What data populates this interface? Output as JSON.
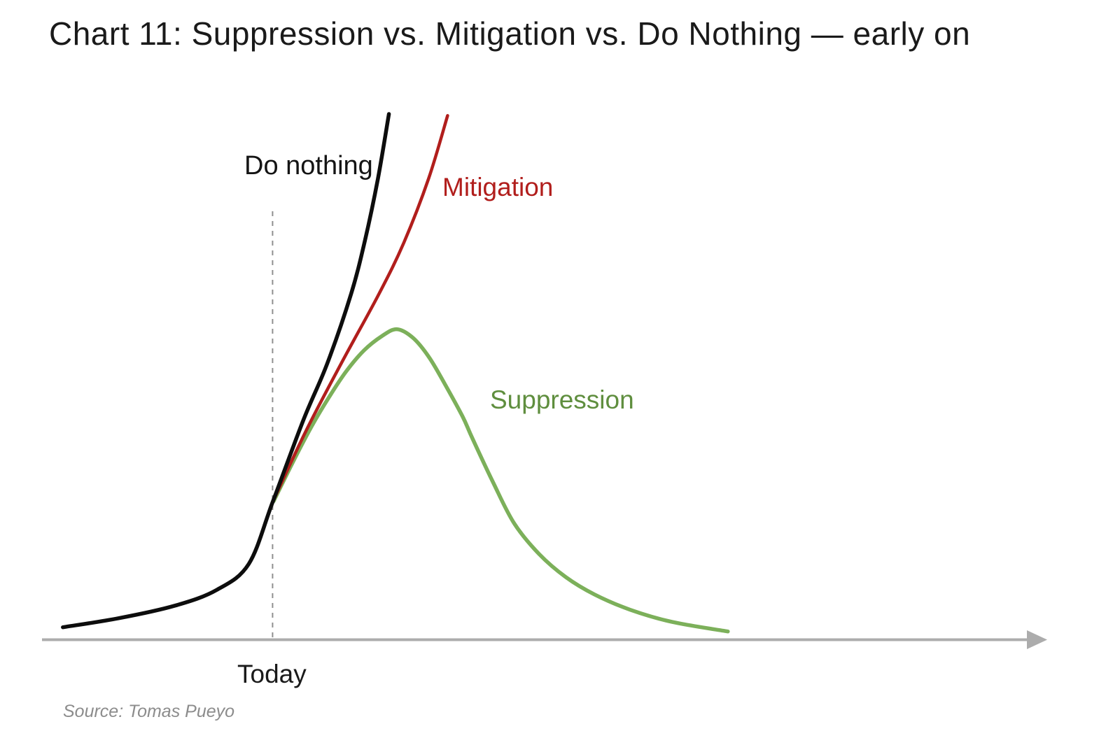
{
  "title": "Chart 11: Suppression vs. Mitigation vs. Do Nothing — early on",
  "source": "Source: Tomas Pueyo",
  "chart_data": {
    "type": "line",
    "title": "Chart 11: Suppression vs. Mitigation vs. Do Nothing — early on",
    "xlabel": "",
    "ylabel": "",
    "x_range": [
      0,
      100
    ],
    "y_range": [
      0,
      100
    ],
    "grid": false,
    "legend": "inline-labels",
    "axis": {
      "color": "#acacac",
      "style": "arrow-right"
    },
    "today_line": {
      "label": "Today",
      "x": 23.2,
      "y_bottom": 0,
      "y_top": 81.7,
      "color": "#8f8f8f"
    },
    "series": [
      {
        "name": "Suppression",
        "color": "#7cb05a",
        "label_color": "#5f8e3e",
        "points": [
          [
            23.3,
            26.2
          ],
          [
            25.4,
            34.2
          ],
          [
            27.1,
            40.3
          ],
          [
            28.9,
            46.0
          ],
          [
            30.6,
            50.8
          ],
          [
            32.4,
            54.8
          ],
          [
            34.2,
            57.5
          ],
          [
            35.7,
            58.8
          ],
          [
            37.3,
            57.2
          ],
          [
            38.9,
            53.6
          ],
          [
            40.5,
            48.5
          ],
          [
            42.3,
            42.3
          ],
          [
            43.3,
            38.1
          ],
          [
            45.4,
            29.7
          ],
          [
            47.5,
            22.0
          ],
          [
            50.0,
            16.2
          ],
          [
            52.7,
            11.8
          ],
          [
            55.6,
            8.5
          ],
          [
            59.2,
            5.6
          ],
          [
            63.4,
            3.3
          ],
          [
            69.0,
            1.5
          ]
        ]
      },
      {
        "name": "Mitigation",
        "color": "#b11e1c",
        "label_color": "#b11e1c",
        "points": [
          [
            23.2,
            26.0
          ],
          [
            26.5,
            39.3
          ],
          [
            30.1,
            52.3
          ],
          [
            33.9,
            65.5
          ],
          [
            36.4,
            75.2
          ],
          [
            38.9,
            87.4
          ],
          [
            40.8,
            99.3
          ]
        ]
      },
      {
        "name": "Do nothing",
        "color": "#0d0d0d",
        "label_color": "#141414",
        "points": [
          [
            2.1,
            2.3
          ],
          [
            7.7,
            4.0
          ],
          [
            13.4,
            6.4
          ],
          [
            17.6,
            9.4
          ],
          [
            20.8,
            14.3
          ],
          [
            23.2,
            26.0
          ],
          [
            26.3,
            41.6
          ],
          [
            28.7,
            52.3
          ],
          [
            31.1,
            65.5
          ],
          [
            32.5,
            75.7
          ],
          [
            33.8,
            87.4
          ],
          [
            34.9,
            99.6
          ]
        ]
      }
    ]
  }
}
